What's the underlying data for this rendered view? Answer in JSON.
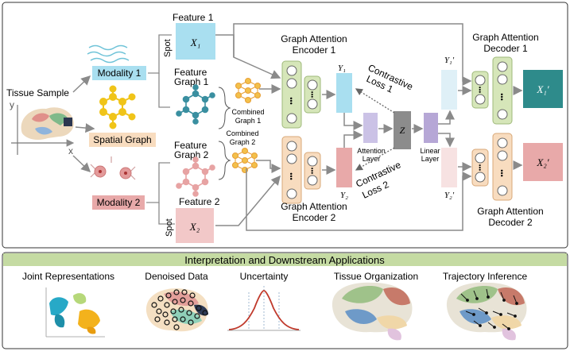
{
  "colors": {
    "teal": "#2e8b8b",
    "blue_box": "#a9dff0",
    "pink_box": "#e8a9a9",
    "green_box": "#d6e6b9",
    "orange_box": "#f8dcbf",
    "purple": "#b6a7d6",
    "gray_z": "#8c8c8c",
    "banner": "#c5dba3",
    "graph_teal": "#3a8fa0",
    "graph_orange": "#e8a13a",
    "graph_pink": "#e7a3a3",
    "spatial_yellow": "#f0c419"
  },
  "inputs": {
    "tissue_sample": "Tissue Sample",
    "axis_y": "y",
    "axis_x": "x",
    "modality1": "Modality 1",
    "spatial_graph": "Spatial Graph",
    "modality2": "Modality 2"
  },
  "features": {
    "feature1": "Feature 1",
    "feature2": "Feature 2",
    "spot": "Spot",
    "x1": "X₁",
    "x2": "X₂",
    "feature_graph1": [
      "Feature",
      "Graph 1"
    ],
    "feature_graph2": [
      "Feature",
      "Graph 2"
    ],
    "combined_graph1": [
      "Combined",
      "Graph 1"
    ],
    "combined_graph2": [
      "Combined",
      "Graph 2"
    ]
  },
  "encoders": {
    "encoder1": [
      "Graph Attention",
      "Encoder 1"
    ],
    "encoder2": [
      "Graph Attention",
      "Encoder 2"
    ],
    "y1": "Y₁",
    "y2": "Y₂",
    "attention_layer": [
      "Attention",
      "Layer"
    ],
    "z": "Z",
    "linear_layer": [
      "Linear",
      "Layer"
    ],
    "contrastive1": [
      "Contrastive",
      "Loss 1"
    ],
    "contrastive2": [
      "Contrastive",
      "Loss 2"
    ],
    "dots": "•••"
  },
  "decoders": {
    "decoder1": [
      "Graph Attention",
      "Decoder 1"
    ],
    "decoder2": [
      "Graph Attention",
      "Decoder 2"
    ],
    "y1p": "Y₁′",
    "y2p": "Y₂′",
    "x1p": "X₁′",
    "x2p": "X₂′"
  },
  "bottom": {
    "banner": "Interpretation and Downstream Applications",
    "joint": "Joint Representations",
    "denoised": "Denoised Data",
    "uncertainty": "Uncertainty",
    "tissue_org": "Tissue Organization",
    "trajectory": "Trajectory Inference"
  }
}
